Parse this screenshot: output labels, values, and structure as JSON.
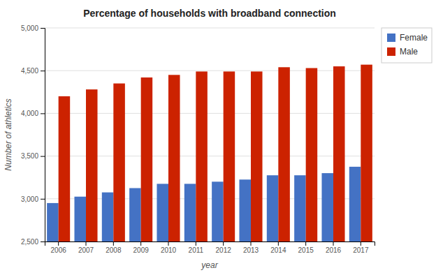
{
  "chart_data": {
    "type": "bar",
    "title": "Percentage of households with broadband connection",
    "x_label": "year",
    "y_label": "Number of athletics",
    "categories": [
      "2006",
      "2007",
      "2008",
      "2009",
      "2010",
      "2011",
      "2012",
      "2013",
      "2014",
      "2015",
      "2016",
      "2017"
    ],
    "series": [
      {
        "name": "Female",
        "color": "#4472C4",
        "values": [
          2950,
          3025,
          3075,
          3125,
          3175,
          3175,
          3200,
          3225,
          3275,
          3275,
          3300,
          3375
        ]
      },
      {
        "name": "Male",
        "color": "#CC2200",
        "values": [
          4200,
          4280,
          4350,
          4420,
          4450,
          4490,
          4490,
          4490,
          4540,
          4530,
          4550,
          4570
        ]
      }
    ],
    "ylim": [
      2500,
      5000
    ],
    "yticks": [
      {
        "value": 2500,
        "label": "2,500"
      },
      {
        "value": 3000,
        "label": "3,000"
      },
      {
        "value": 3500,
        "label": "3,500"
      },
      {
        "value": 4000,
        "label": "4,000"
      },
      {
        "value": 4500,
        "label": "4,500"
      },
      {
        "value": 5000,
        "label": "5,000"
      }
    ],
    "grid": true,
    "legend": "upper right"
  }
}
